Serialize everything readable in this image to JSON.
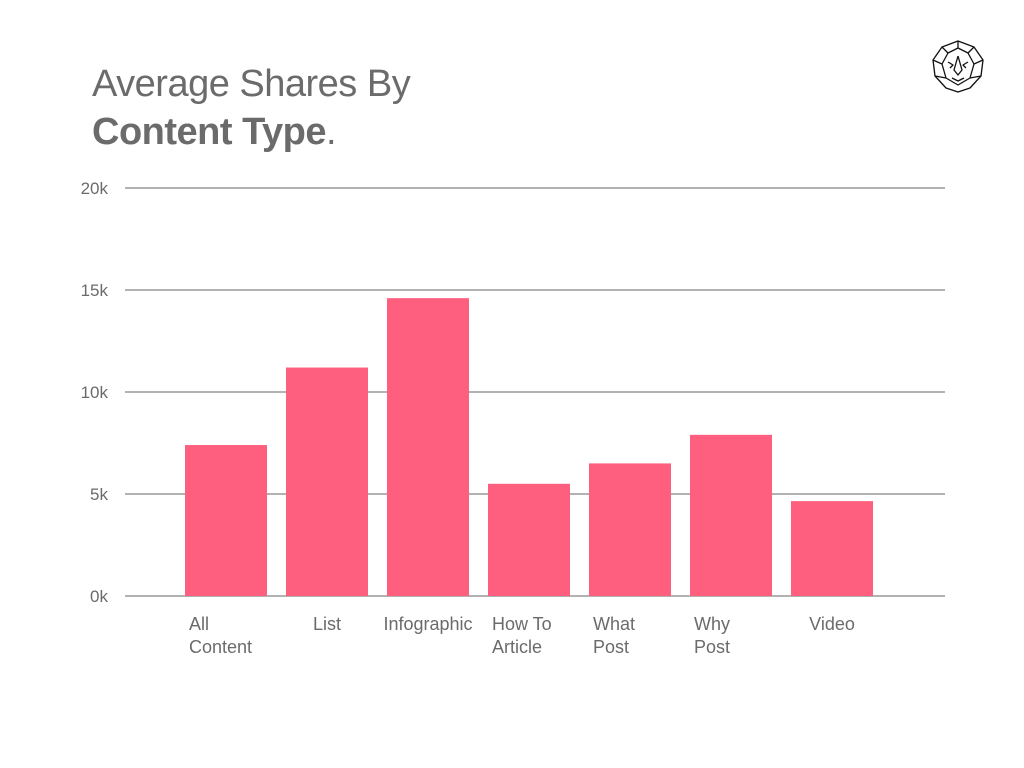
{
  "title": {
    "line1": "Average Shares By",
    "line2_bold": "Content Type",
    "line2_suffix": "."
  },
  "logo_icon": "lion-head-icon",
  "colors": {
    "bar": "#ff5f7e",
    "grid": "#666666",
    "text": "#6b6b6b"
  },
  "chart_data": {
    "type": "bar",
    "title": "Average Shares By Content Type.",
    "categories": [
      [
        "All",
        "Content"
      ],
      [
        "List"
      ],
      [
        "Infographic"
      ],
      [
        "How To",
        "Article"
      ],
      [
        "What",
        "Post"
      ],
      [
        "Why",
        "Post"
      ],
      [
        "Video"
      ]
    ],
    "values": [
      7400,
      11200,
      14600,
      5500,
      6500,
      7900,
      4650
    ],
    "yticks": [
      "0k",
      "5k",
      "10k",
      "15k",
      "20k"
    ],
    "ylim": [
      0,
      20000
    ],
    "grid": true,
    "legend": "none"
  }
}
